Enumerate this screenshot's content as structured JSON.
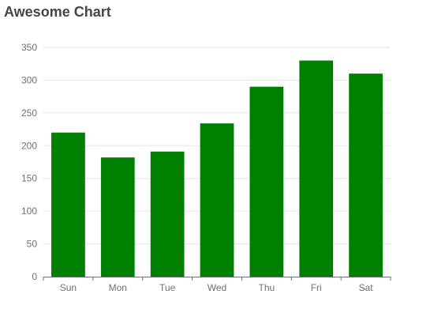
{
  "chart_data": {
    "type": "bar",
    "title": "Awesome Chart",
    "xlabel": "",
    "ylabel": "",
    "categories": [
      "Sun",
      "Mon",
      "Tue",
      "Wed",
      "Thu",
      "Fri",
      "Sat"
    ],
    "values": [
      220,
      182,
      191,
      234,
      290,
      330,
      310
    ],
    "ylim": [
      0,
      350
    ],
    "yticks": [
      0,
      50,
      100,
      150,
      200,
      250,
      300,
      350
    ],
    "grid": true,
    "legend": "none",
    "bar_color": "#008000",
    "grid_color": "#e0e6f1",
    "axis_color": "#6e7079"
  }
}
